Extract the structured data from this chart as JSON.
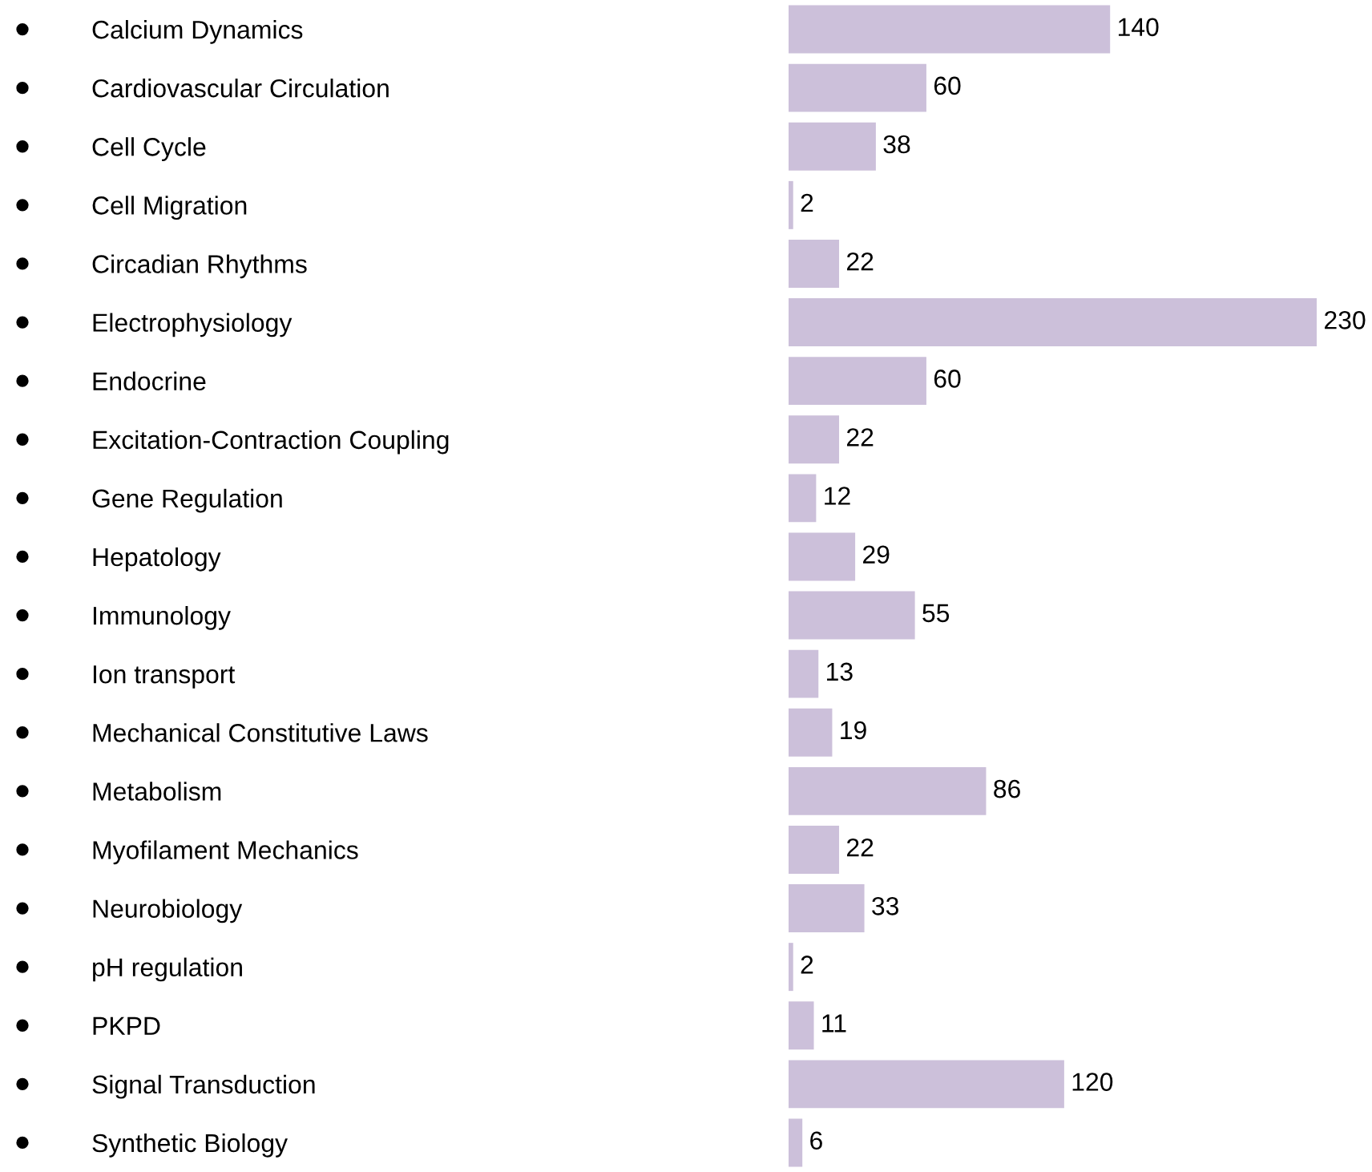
{
  "chart_data": {
    "type": "bar",
    "orientation": "horizontal",
    "categories": [
      "Calcium Dynamics",
      "Cardiovascular Circulation",
      "Cell Cycle",
      "Cell Migration",
      "Circadian Rhythms",
      "Electrophysiology",
      "Endocrine",
      "Excitation-Contraction Coupling",
      "Gene Regulation",
      "Hepatology",
      "Immunology",
      "Ion transport",
      "Mechanical Constitutive Laws",
      "Metabolism",
      "Myofilament Mechanics",
      "Neurobiology",
      "pH regulation",
      "PKPD",
      "Signal Transduction",
      "Synthetic Biology"
    ],
    "values": [
      140,
      60,
      38,
      2,
      22,
      230,
      60,
      22,
      12,
      29,
      55,
      13,
      19,
      86,
      22,
      33,
      2,
      11,
      120,
      6
    ],
    "color": "#ccc0da",
    "data_labels": true,
    "grid": false,
    "legend": false
  }
}
